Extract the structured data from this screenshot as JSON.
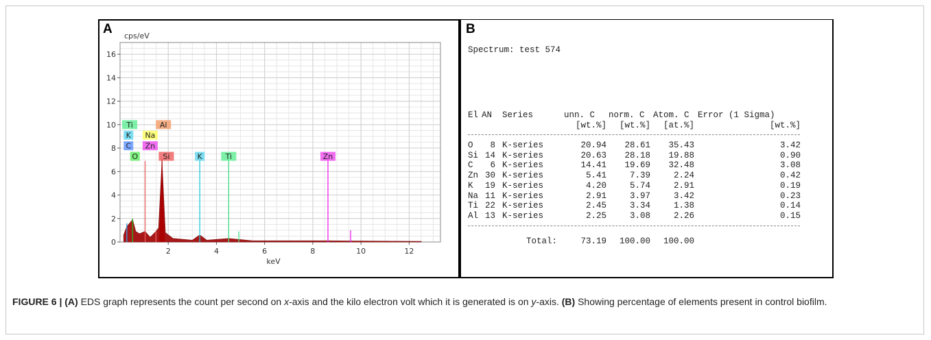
{
  "figure": {
    "label": "FIGURE 6 |",
    "caption_segments": [
      {
        "text": "(A)",
        "bold": true
      },
      {
        "text": " EDS graph represents the count per second on ",
        "bold": false
      },
      {
        "text": "x",
        "italic": true
      },
      {
        "text": "-axis and the kilo electron volt which it is generated is on ",
        "bold": false
      },
      {
        "text": "y",
        "italic": true
      },
      {
        "text": "-axis. ",
        "bold": false
      },
      {
        "text": "(B)",
        "bold": true
      },
      {
        "text": " Showing percentage of elements present in control biofilm.",
        "bold": false
      }
    ]
  },
  "panel_a": {
    "letter": "A"
  },
  "panel_b": {
    "letter": "B"
  },
  "chart_data": [
    {
      "type": "line",
      "xlabel": "keV",
      "ylabel": "cps/eV",
      "xlim": [
        0,
        13.3
      ],
      "ylim": [
        0,
        17
      ],
      "xticks": [
        2,
        4,
        6,
        8,
        10,
        12
      ],
      "yticks": [
        0,
        2,
        4,
        6,
        8,
        10,
        12,
        14,
        16
      ],
      "grid": true,
      "series": [
        {
          "element": "C",
          "color": "#3aa0e8",
          "peaks": [
            {
              "x": 0.28,
              "y": 1.6
            }
          ]
        },
        {
          "element": "O",
          "color": "#22bb22",
          "peaks": [
            {
              "x": 0.52,
              "y": 2.0
            }
          ]
        },
        {
          "element": "Na",
          "color": "#f06060",
          "peaks": [
            {
              "x": 1.04,
              "y": 6.9
            }
          ]
        },
        {
          "element": "Al",
          "color": "#f06060",
          "peaks": [
            {
              "x": 1.49,
              "y": 0.9
            }
          ]
        },
        {
          "element": "Si",
          "color": "#aa0000",
          "peaks": [
            {
              "x": 1.74,
              "y": 7.1
            }
          ]
        },
        {
          "element": "K",
          "color": "#22c8d8",
          "peaks": [
            {
              "x": 3.31,
              "y": 7.1
            }
          ]
        },
        {
          "element": "Ti",
          "color": "#44dd88",
          "peaks": [
            {
              "x": 4.51,
              "y": 7.1
            },
            {
              "x": 4.93,
              "y": 0.9
            }
          ]
        },
        {
          "element": "Zn",
          "color": "#ee22ee",
          "peaks": [
            {
              "x": 8.63,
              "y": 7.1
            },
            {
              "x": 9.57,
              "y": 1.0
            }
          ]
        }
      ],
      "background_spectrum": [
        {
          "x": 0.15,
          "y": 0.6
        },
        {
          "x": 0.28,
          "y": 1.3
        },
        {
          "x": 0.4,
          "y": 1.6
        },
        {
          "x": 0.52,
          "y": 1.9
        },
        {
          "x": 0.65,
          "y": 0.9
        },
        {
          "x": 0.8,
          "y": 0.7
        },
        {
          "x": 1.04,
          "y": 0.9
        },
        {
          "x": 1.25,
          "y": 0.4
        },
        {
          "x": 1.49,
          "y": 0.9
        },
        {
          "x": 1.6,
          "y": 1.2
        },
        {
          "x": 1.74,
          "y": 6.8
        },
        {
          "x": 1.88,
          "y": 0.8
        },
        {
          "x": 2.2,
          "y": 0.3
        },
        {
          "x": 3.0,
          "y": 0.15
        },
        {
          "x": 3.31,
          "y": 0.6
        },
        {
          "x": 3.6,
          "y": 0.15
        },
        {
          "x": 4.51,
          "y": 0.3
        },
        {
          "x": 5.5,
          "y": 0.1
        },
        {
          "x": 8.63,
          "y": 0.1
        },
        {
          "x": 12.5,
          "y": 0.05
        }
      ],
      "annotations": [
        {
          "text": "Ti",
          "x": 0.4,
          "y": 10.0,
          "color": "#66ee99"
        },
        {
          "text": "Al",
          "x": 1.8,
          "y": 10.0,
          "color": "#f4a070"
        },
        {
          "text": "K",
          "x": 0.35,
          "y": 9.1,
          "color": "#66d8ee"
        },
        {
          "text": "Na",
          "x": 1.25,
          "y": 9.1,
          "color": "#ffff66"
        },
        {
          "text": "C",
          "x": 0.35,
          "y": 8.2,
          "color": "#6699ff"
        },
        {
          "text": "Zn",
          "x": 1.25,
          "y": 8.2,
          "color": "#ee55ee"
        },
        {
          "text": "O",
          "x": 0.62,
          "y": 7.3,
          "color": "#66ee66"
        },
        {
          "text": "Si",
          "x": 1.92,
          "y": 7.3,
          "color": "#ee6666"
        },
        {
          "text": "K",
          "x": 3.31,
          "y": 7.3,
          "color": "#66d8ee"
        },
        {
          "text": "Ti",
          "x": 4.51,
          "y": 7.3,
          "color": "#66ee99"
        },
        {
          "text": "Zn",
          "x": 8.63,
          "y": 7.3,
          "color": "#ee55ee"
        }
      ]
    },
    {
      "type": "table",
      "title": "Spectrum: test 574",
      "header_line1": [
        "El",
        "AN",
        "Series",
        "unn. C",
        "norm. C",
        "Atom. C",
        "Error (1 Sigma)"
      ],
      "header_line2": [
        "",
        "",
        "",
        "[wt.%]",
        "[wt.%]",
        "[at.%]",
        "[wt.%]"
      ],
      "rows": [
        [
          "O",
          "8",
          "K-series",
          "20.94",
          "28.61",
          "35.43",
          "3.42"
        ],
        [
          "Si",
          "14",
          "K-series",
          "20.63",
          "28.18",
          "19.88",
          "0.90"
        ],
        [
          "C",
          "6",
          "K-series",
          "14.41",
          "19.69",
          "32.48",
          "3.08"
        ],
        [
          "Zn",
          "30",
          "K-series",
          "5.41",
          "7.39",
          "2.24",
          "0.42"
        ],
        [
          "K",
          "19",
          "K-series",
          "4.20",
          "5.74",
          "2.91",
          "0.19"
        ],
        [
          "Na",
          "11",
          "K-series",
          "2.91",
          "3.97",
          "3.42",
          "0.23"
        ],
        [
          "Ti",
          "22",
          "K-series",
          "2.45",
          "3.34",
          "1.38",
          "0.14"
        ],
        [
          "Al",
          "13",
          "K-series",
          "2.25",
          "3.08",
          "2.26",
          "0.15"
        ]
      ],
      "total": {
        "label": "Total:",
        "unn": "73.19",
        "norm": "100.00",
        "atom": "100.00"
      }
    }
  ]
}
